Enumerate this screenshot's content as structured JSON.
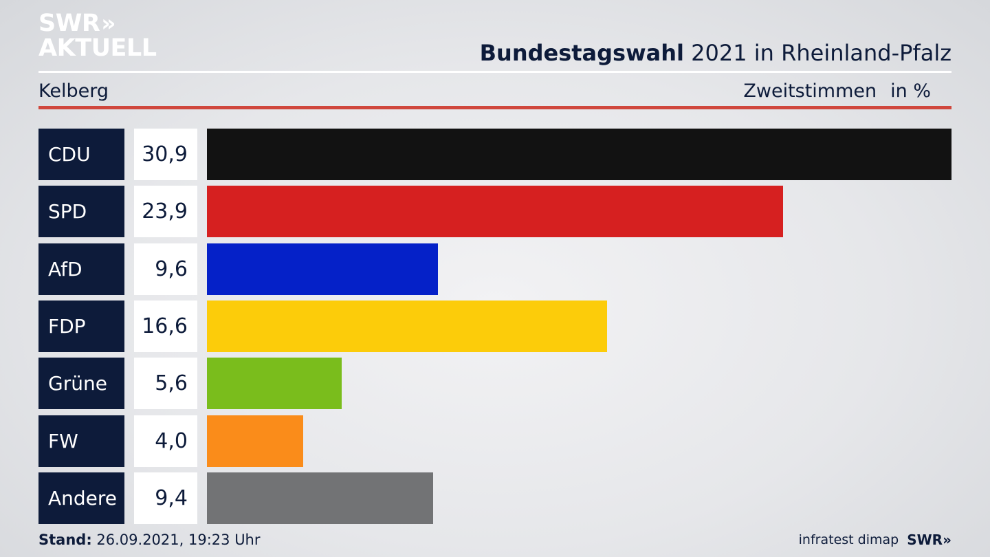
{
  "brand": {
    "logo_line1": "SWR",
    "logo_chevrons": "»",
    "logo_line2": "AKTUELL"
  },
  "header": {
    "title_bold": "Bundestagswahl",
    "title_rest": "2021 in Rheinland-Pfalz",
    "region": "Kelberg",
    "measure": "Zweitstimmen",
    "unit": "in %"
  },
  "colors": {
    "navy": "#0d1b3a",
    "accent_rule": "#d0473d"
  },
  "chart_data": {
    "type": "bar",
    "orientation": "horizontal",
    "categories": [
      "CDU",
      "SPD",
      "AfD",
      "FDP",
      "Grüne",
      "FW",
      "Andere"
    ],
    "values": [
      30.9,
      23.9,
      9.6,
      16.6,
      5.6,
      4.0,
      9.4
    ],
    "value_labels": [
      "30,9",
      "23,9",
      "9,6",
      "16,6",
      "5,6",
      "4,0",
      "9,4"
    ],
    "colors": [
      "#121212",
      "#d62020",
      "#0521c8",
      "#fccc0a",
      "#7abd1c",
      "#fa8c1a",
      "#727375"
    ],
    "xlim": [
      0,
      30.9
    ]
  },
  "footer": {
    "stand_label": "Stand:",
    "stand_value": "26.09.2021, 19:23 Uhr",
    "source": "infratest dimap",
    "source_logo": "SWR»"
  }
}
